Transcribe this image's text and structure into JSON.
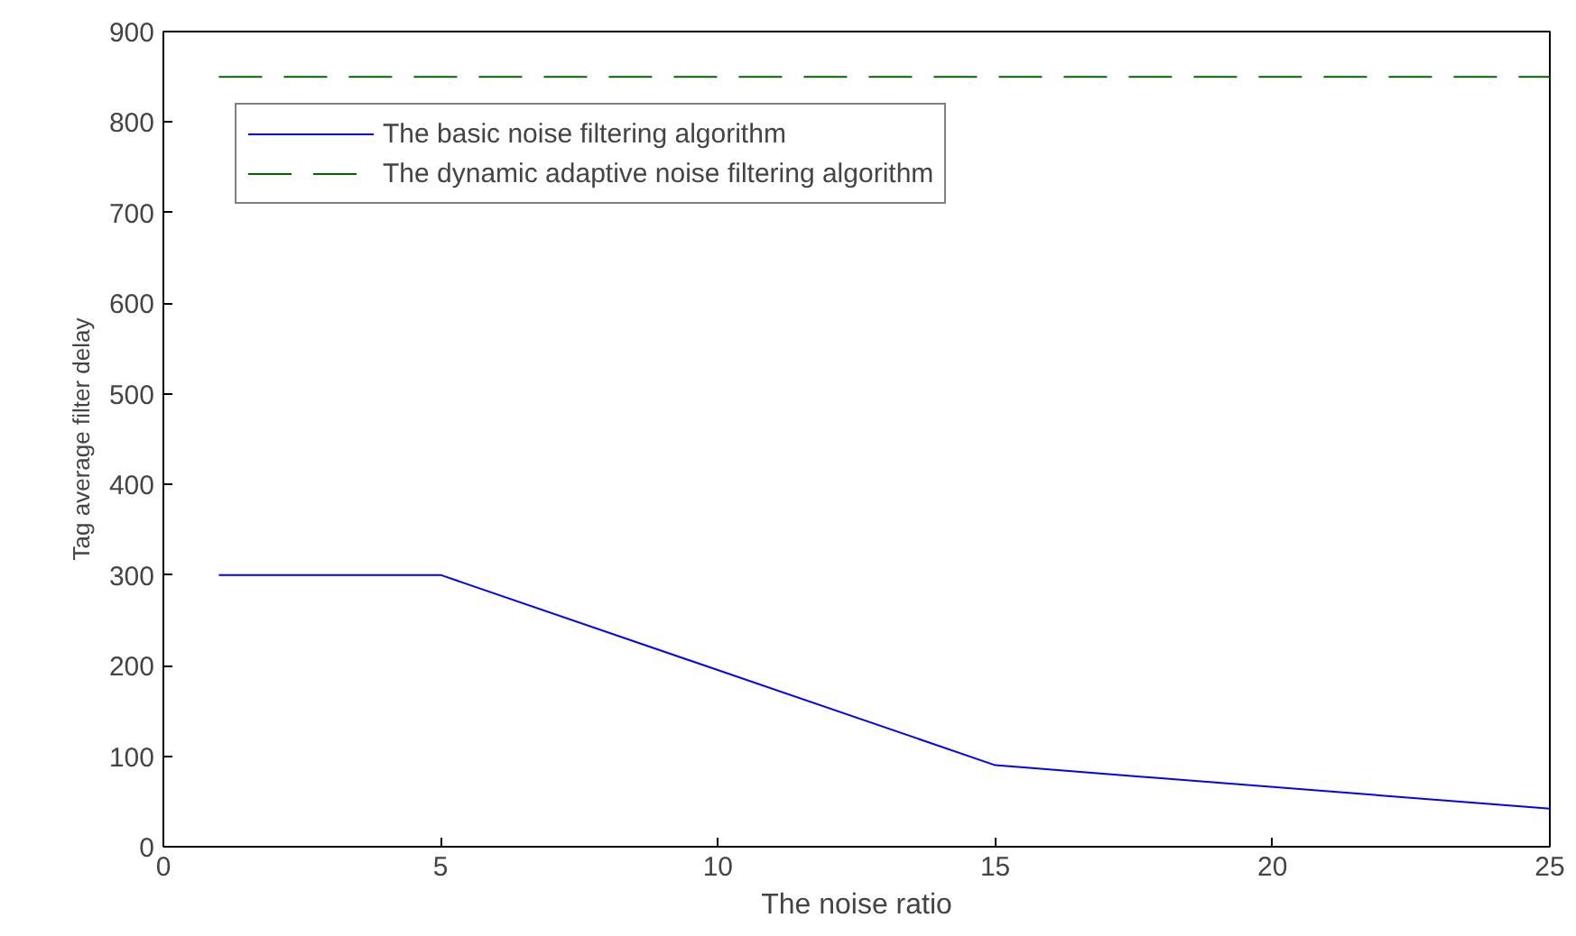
{
  "chart_data": {
    "type": "line",
    "xlabel": "The noise ratio",
    "ylabel": "Tag average filter delay",
    "xlim": [
      0,
      25
    ],
    "ylim": [
      0,
      900
    ],
    "xticks": [
      0,
      5,
      10,
      15,
      20,
      25
    ],
    "yticks": [
      0,
      100,
      200,
      300,
      400,
      500,
      600,
      700,
      800,
      900
    ],
    "grid": false,
    "legend": "top left",
    "marker": "none",
    "series": [
      {
        "name": "The basic noise filtering algorithm",
        "color": "#0000ff",
        "x": [
          1,
          5,
          15,
          25
        ],
        "values": [
          300,
          300,
          90,
          42
        ],
        "line_style": "solid"
      },
      {
        "name": "The dynamic adaptive noise filtering algorithm",
        "color": "#006400",
        "x": [
          1,
          25
        ],
        "values": [
          850,
          850
        ],
        "line_style": "dashed"
      }
    ]
  }
}
